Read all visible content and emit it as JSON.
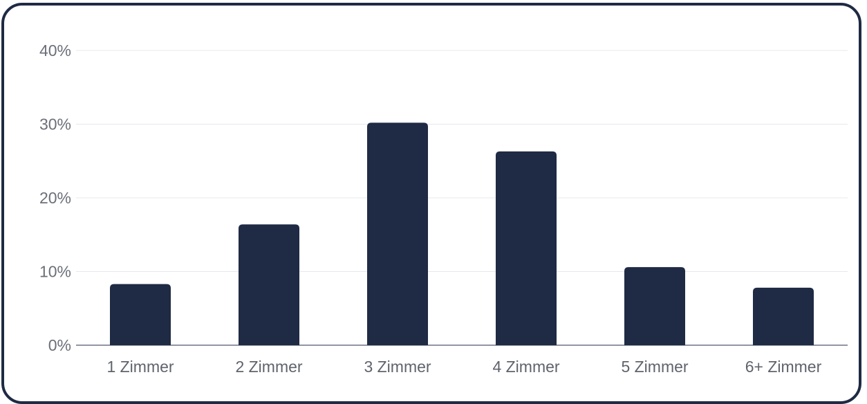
{
  "colors": {
    "bar": "#1f2a44",
    "border": "#1f2a44",
    "grid": "#e6e8ec",
    "axis": "#6b7280",
    "text": "#6b6f78"
  },
  "chart_data": {
    "type": "bar",
    "title": "",
    "xlabel": "",
    "ylabel": "",
    "categories": [
      "1 Zimmer",
      "2 Zimmer",
      "3 Zimmer",
      "4 Zimmer",
      "5 Zimmer",
      "6+ Zimmer"
    ],
    "values": [
      8.3,
      16.4,
      30.2,
      26.3,
      10.6,
      7.8
    ],
    "ylim": [
      0,
      40
    ],
    "y_ticks": [
      0,
      10,
      20,
      30,
      40
    ],
    "y_tick_labels": [
      "0%",
      "10%",
      "20%",
      "30%",
      "40%"
    ],
    "grid": true,
    "legend": "none"
  }
}
